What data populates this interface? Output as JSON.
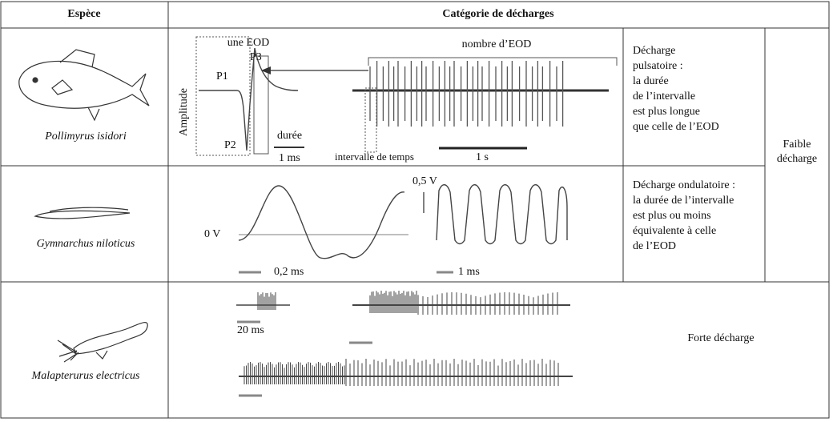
{
  "table": {
    "header": {
      "species": "Espèce",
      "category": "Catégorie de décharges"
    },
    "rows": [
      {
        "species": "Pollimyrus isidori",
        "graphic": {
          "one_eod": "une EOD",
          "p3": "P3",
          "p1": "P1",
          "p2": "P2",
          "amplitude": "Amplitude",
          "duration": "durée",
          "scale_ms": "1 ms",
          "eod_count": "nombre d’EOD",
          "time_interval": "intervalle de temps",
          "scale_s": "1 s"
        },
        "description": [
          "Décharge",
          "pulsatoire :",
          "la durée",
          "de l’intervalle",
          "est plus longue",
          "que celle de l’EOD"
        ]
      },
      {
        "species": "Gymnarchus niloticus",
        "graphic": {
          "zero": "0 V",
          "scale_left": "0,2 ms",
          "amplitude_scale": "0,5 V",
          "scale_right": "1 ms"
        },
        "description": [
          "Décharge ondulatoire :",
          "la durée de l’intervalle",
          "est plus ou moins",
          "équivalente à celle",
          "de l’EOD"
        ]
      },
      {
        "species": "Malapterurus electricus",
        "graphic": {
          "scale": "20 ms"
        },
        "description": [
          "Forte décharge"
        ]
      }
    ],
    "weak_label": [
      "Faible",
      "décharge"
    ]
  }
}
